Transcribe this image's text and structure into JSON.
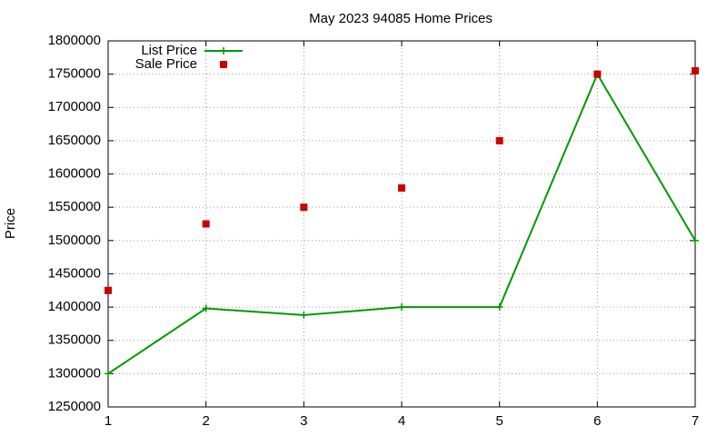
{
  "chart_data": {
    "type": "line",
    "title": "May 2023 94085 Home Prices",
    "y_label": "Price",
    "x": [
      1,
      2,
      3,
      4,
      5,
      6,
      7
    ],
    "series": [
      {
        "name": "List Price",
        "color": "#009900",
        "mode": "linespoints",
        "values": [
          1300000,
          1398000,
          1388000,
          1400000,
          1400000,
          1750000,
          1500000
        ]
      },
      {
        "name": "Sale Price",
        "color": "#cc0000",
        "mode": "points",
        "values": [
          1425000,
          1525000,
          1550000,
          1579000,
          1650000,
          1750000,
          1755000
        ]
      }
    ],
    "xlim": [
      1,
      7
    ],
    "xticks": [
      1,
      2,
      3,
      4,
      5,
      6,
      7
    ],
    "ylim": [
      1250000,
      1800000
    ],
    "yticks": [
      1250000,
      1300000,
      1350000,
      1400000,
      1450000,
      1500000,
      1550000,
      1600000,
      1650000,
      1700000,
      1750000,
      1800000
    ],
    "grid": true,
    "legend": "top-left"
  }
}
